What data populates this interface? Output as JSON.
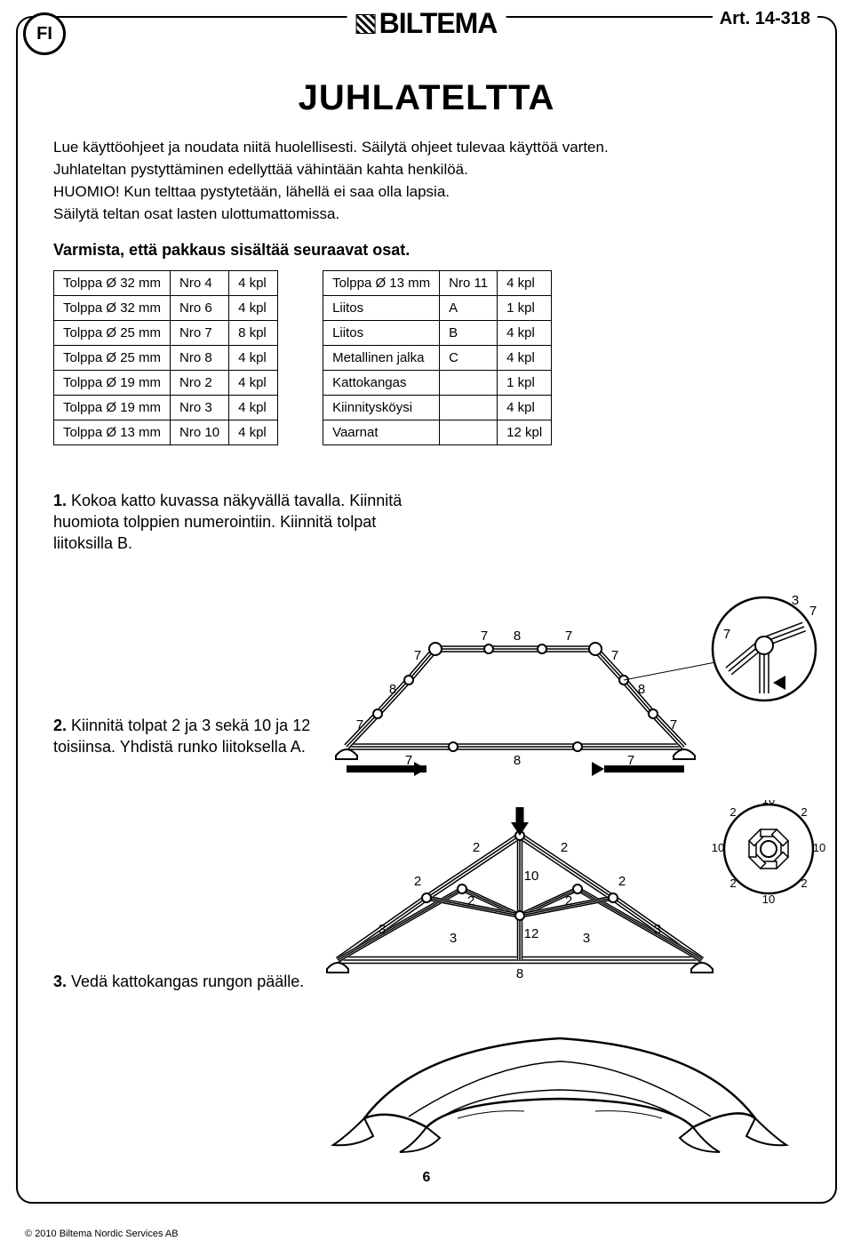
{
  "lang_code": "FI",
  "brand": "BILTEMA",
  "article": "Art. 14-318",
  "title": "JUHLATELTTA",
  "intro_lines": [
    "Lue käyttöohjeet ja noudata niitä huolellisesti. Säilytä ohjeet tulevaa käyttöä varten.",
    "Juhlateltan pystyttäminen edellyttää vähintään kahta henkilöä.",
    "HUOMIO! Kun telttaa pystytetään, lähellä ei saa olla lapsia.",
    "Säilytä teltan osat lasten ulottumattomissa."
  ],
  "check_heading": "Varmista, että pakkaus sisältää seuraavat osat.",
  "table1": [
    [
      "Tolppa Ø 32 mm",
      "Nro 4",
      "4 kpl"
    ],
    [
      "Tolppa Ø 32 mm",
      "Nro 6",
      "4 kpl"
    ],
    [
      "Tolppa Ø 25 mm",
      "Nro 7",
      "8 kpl"
    ],
    [
      "Tolppa Ø 25 mm",
      "Nro 8",
      "4 kpl"
    ],
    [
      "Tolppa Ø 19 mm",
      "Nro 2",
      "4 kpl"
    ],
    [
      "Tolppa Ø 19 mm",
      "Nro 3",
      "4 kpl"
    ],
    [
      "Tolppa Ø 13 mm",
      "Nro 10",
      "4 kpl"
    ]
  ],
  "table2": [
    [
      "Tolppa Ø 13 mm",
      "Nro 11",
      "4 kpl"
    ],
    [
      "Liitos",
      "A",
      "1 kpl"
    ],
    [
      "Liitos",
      "B",
      "4 kpl"
    ],
    [
      "Metallinen jalka",
      "C",
      "4 kpl"
    ],
    [
      "Kattokangas",
      "",
      "1 kpl"
    ],
    [
      "Kiinnitysköysi",
      "",
      "4 kpl"
    ],
    [
      "Vaarnat",
      "",
      "12 kpl"
    ]
  ],
  "steps": {
    "s1_num": "1.",
    "s1_text": "Kokoa katto kuvassa näkyvällä tavalla. Kiinnitä huomiota tolppien numerointiin. Kiinnitä tolpat liitoksilla B.",
    "s2_num": "2.",
    "s2_text": "Kiinnitä tolpat 2 ja 3 sekä 10 ja 12 toisiinsa. Yhdistä runko liitoksella A.",
    "s3_num": "3.",
    "s3_text": "Vedä kattokangas rungon päälle."
  },
  "diagram1_labels": {
    "top": [
      "7",
      "8",
      "7"
    ],
    "left": [
      "7",
      "8",
      "7"
    ],
    "right": [
      "7",
      "8",
      "7"
    ],
    "bottom": [
      "7",
      "8",
      "7"
    ],
    "detail": [
      "3",
      "7",
      "7"
    ]
  },
  "diagram2_labels": {
    "top_inner": [
      "2",
      "10",
      "2"
    ],
    "mid": [
      "2",
      "2",
      "2",
      "2"
    ],
    "threes": [
      "3",
      "3",
      "3",
      "3"
    ],
    "center": [
      "10",
      "12",
      "8"
    ],
    "hub": [
      "2",
      "2",
      "10",
      "10",
      "2",
      "2",
      "10",
      "10"
    ]
  },
  "page_number": "6",
  "copyright": "© 2010 Biltema Nordic Services AB",
  "colors": {
    "stroke": "#000000",
    "bg": "#ffffff"
  }
}
